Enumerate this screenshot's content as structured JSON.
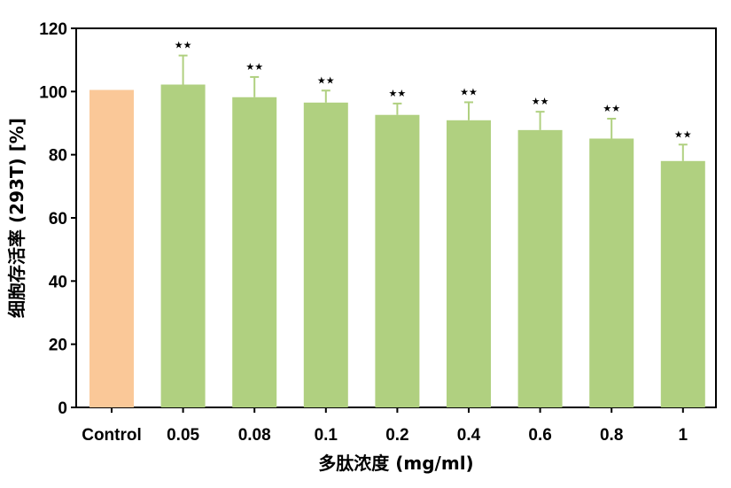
{
  "chart_data": {
    "type": "bar",
    "categories": [
      "Control",
      "0.05",
      "0.08",
      "0.1",
      "0.2",
      "0.4",
      "0.6",
      "0.8",
      "1"
    ],
    "values": [
      100.5,
      102.2,
      98.2,
      96.5,
      92.6,
      90.9,
      87.8,
      85.1,
      78.0
    ],
    "errors": [
      0,
      9.2,
      6.4,
      3.8,
      3.6,
      5.7,
      5.8,
      6.3,
      5.2
    ],
    "significance": [
      "",
      "★★",
      "★★",
      "★★",
      "★★",
      "★★",
      "★★",
      "★★",
      "★★"
    ],
    "xlabel": "多肽浓度 (mg/ml)",
    "ylabel": "细胞存活率 (293T) [%]",
    "ylim": [
      0,
      120
    ],
    "yticks": [
      0,
      20,
      40,
      60,
      80,
      100,
      120
    ],
    "colors": {
      "control": "#FAC898",
      "treatment": "#B0D080",
      "error_bar": "#B0D080"
    },
    "grid": false,
    "legend": "none"
  }
}
